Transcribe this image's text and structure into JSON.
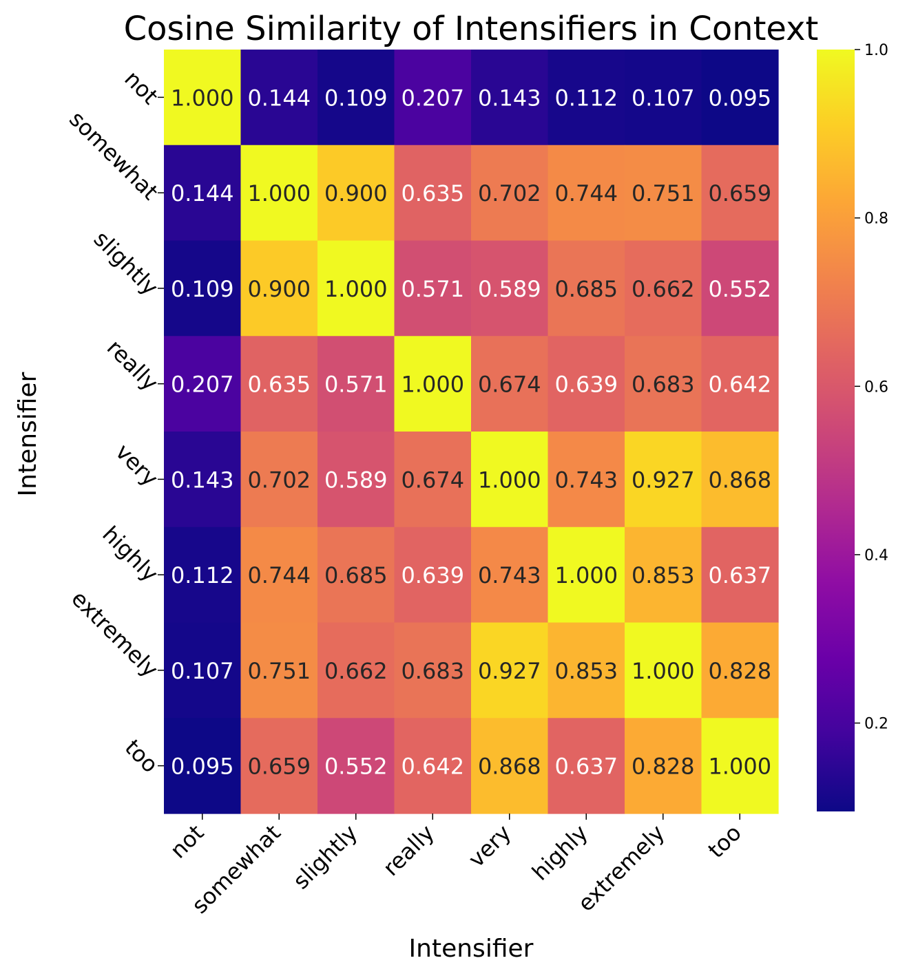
{
  "chart_data": {
    "type": "heatmap",
    "title": "Cosine Similarity of Intensifiers in Context",
    "xlabel": "Intensifier",
    "ylabel": "Intensifier",
    "x_categories": [
      "not",
      "somewhat",
      "slightly",
      "really",
      "very",
      "highly",
      "extremely",
      "too"
    ],
    "y_categories": [
      "not",
      "somewhat",
      "slightly",
      "really",
      "very",
      "highly",
      "extremely",
      "too"
    ],
    "values": [
      [
        1.0,
        0.144,
        0.109,
        0.207,
        0.143,
        0.112,
        0.107,
        0.095
      ],
      [
        0.144,
        1.0,
        0.9,
        0.635,
        0.702,
        0.744,
        0.751,
        0.659
      ],
      [
        0.109,
        0.9,
        1.0,
        0.571,
        0.589,
        0.685,
        0.662,
        0.552
      ],
      [
        0.207,
        0.635,
        0.571,
        1.0,
        0.674,
        0.639,
        0.683,
        0.642
      ],
      [
        0.143,
        0.702,
        0.589,
        0.674,
        1.0,
        0.743,
        0.927,
        0.868
      ],
      [
        0.112,
        0.744,
        0.685,
        0.639,
        0.743,
        1.0,
        0.853,
        0.637
      ],
      [
        0.107,
        0.751,
        0.662,
        0.683,
        0.927,
        0.853,
        1.0,
        0.828
      ],
      [
        0.095,
        0.659,
        0.552,
        0.642,
        0.868,
        0.637,
        0.828,
        1.0
      ]
    ],
    "value_format": "3 decimals",
    "colormap": "plasma",
    "vmin": 0.095,
    "vmax": 1.0,
    "colorbar_ticks": [
      0.2,
      0.4,
      0.6,
      0.8,
      1.0
    ],
    "colorbar_tick_labels": [
      "0.2",
      "0.4",
      "0.6",
      "0.8",
      "1.0"
    ],
    "x_tick_rotation_deg": 45,
    "y_tick_rotation_deg": 45,
    "grid": false,
    "annotation_colors": {
      "light": "#ffffff",
      "dark": "#262626"
    }
  }
}
